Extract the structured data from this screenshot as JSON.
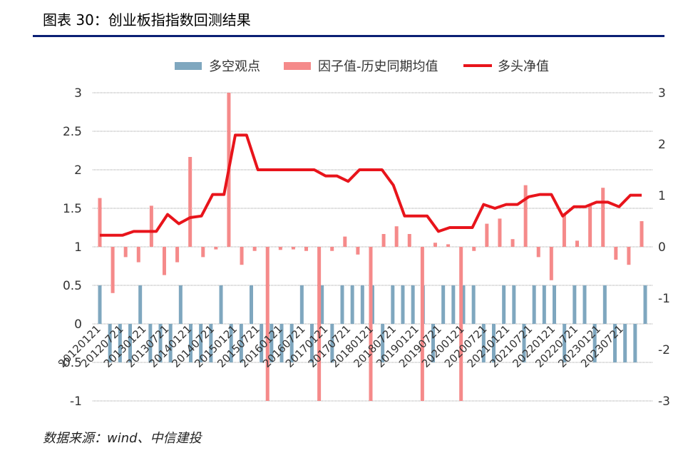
{
  "header": {
    "title": "图表 30：创业板指指数回测结果"
  },
  "footer": {
    "source": "数据来源：wind、中信建投"
  },
  "colors": {
    "title_rule": "#0a1f74",
    "long_short": "#7fa7bf",
    "factor_minus_hist": "#f58a8a",
    "long_nav": "#e8141b",
    "grid": "#999999"
  },
  "chart_data": {
    "type": "bar+line",
    "legend": [
      "多空观点",
      "因子值-历史同期均值",
      "多头净值"
    ],
    "legend_position": "top",
    "ylim_left": [
      -1,
      3
    ],
    "yticks_left": [
      "3",
      "2.5",
      "2",
      "1.5",
      "1",
      "0.5",
      "0",
      "-0.5",
      "-1"
    ],
    "yticks_right": [
      "3",
      "2",
      "1",
      "0",
      "-1",
      "-2",
      "-3"
    ],
    "ylim_right": [
      -3,
      3
    ],
    "xtick_labels": [
      "20120121",
      "20120721",
      "20130121",
      "20130721",
      "20140121",
      "20140721",
      "20150121",
      "20150721",
      "20160121",
      "20160721",
      "20170121",
      "20170721",
      "20180121",
      "20180721",
      "20190121",
      "20190721",
      "20200121",
      "20200721",
      "20210121",
      "20210721",
      "20220121",
      "20220721",
      "20230121",
      "20230721"
    ],
    "grid": true,
    "series": [
      {
        "name": "多空观点",
        "axis": "left",
        "kind": "bar",
        "values": [
          0.5,
          -0.5,
          -0.5,
          -0.5,
          0.5,
          -0.5,
          -0.5,
          -0.5,
          0.5,
          -0.5,
          -0.5,
          -0.5,
          0.5,
          -0.5,
          -0.5,
          0.5,
          -0.5,
          -0.5,
          -0.5,
          -0.5,
          0.5,
          -0.5,
          0.5,
          -0.5,
          0.5,
          0.5,
          0.5,
          0.5,
          -0.5,
          0.5,
          0.5,
          0.5,
          0.5,
          -0.5,
          0.5,
          0.5,
          0.5,
          0.5,
          -0.5,
          -0.5,
          0.5,
          0.5,
          -0.5,
          0.5,
          0.5,
          0.5,
          -0.5,
          0.5,
          0.5,
          -0.5,
          0.5,
          -0.5,
          -0.5,
          -0.5,
          0.5
        ]
      },
      {
        "name": "因子值-历史同期均值",
        "axis": "right",
        "kind": "bar",
        "values": [
          0.95,
          -0.9,
          -0.2,
          -0.3,
          0.8,
          -0.55,
          -0.3,
          1.75,
          -0.2,
          -0.05,
          3.0,
          -0.35,
          -0.08,
          -3.0,
          -0.06,
          -0.05,
          -0.08,
          -3.0,
          -0.08,
          0.2,
          -0.15,
          -3.0,
          0.25,
          0.4,
          0.25,
          -3.0,
          0.08,
          0.05,
          -3.0,
          -0.08,
          0.45,
          0.55,
          0.15,
          1.2,
          -0.2,
          -0.65,
          0.65,
          0.12,
          0.8,
          1.15,
          -0.25,
          -0.35,
          0.5
        ]
      },
      {
        "name": "多头净值",
        "axis": "left",
        "kind": "line",
        "values": [
          1.15,
          1.15,
          1.15,
          1.2,
          1.2,
          1.2,
          1.42,
          1.3,
          1.38,
          1.4,
          1.68,
          1.68,
          2.45,
          2.45,
          2.0,
          2.0,
          2.0,
          2.0,
          2.0,
          2.0,
          1.92,
          1.92,
          1.85,
          2.0,
          2.0,
          2.0,
          1.8,
          1.4,
          1.4,
          1.4,
          1.2,
          1.25,
          1.25,
          1.25,
          1.55,
          1.5,
          1.55,
          1.55,
          1.65,
          1.68,
          1.68,
          1.4,
          1.52,
          1.52,
          1.58,
          1.58,
          1.52,
          1.67,
          1.67
        ]
      }
    ]
  }
}
